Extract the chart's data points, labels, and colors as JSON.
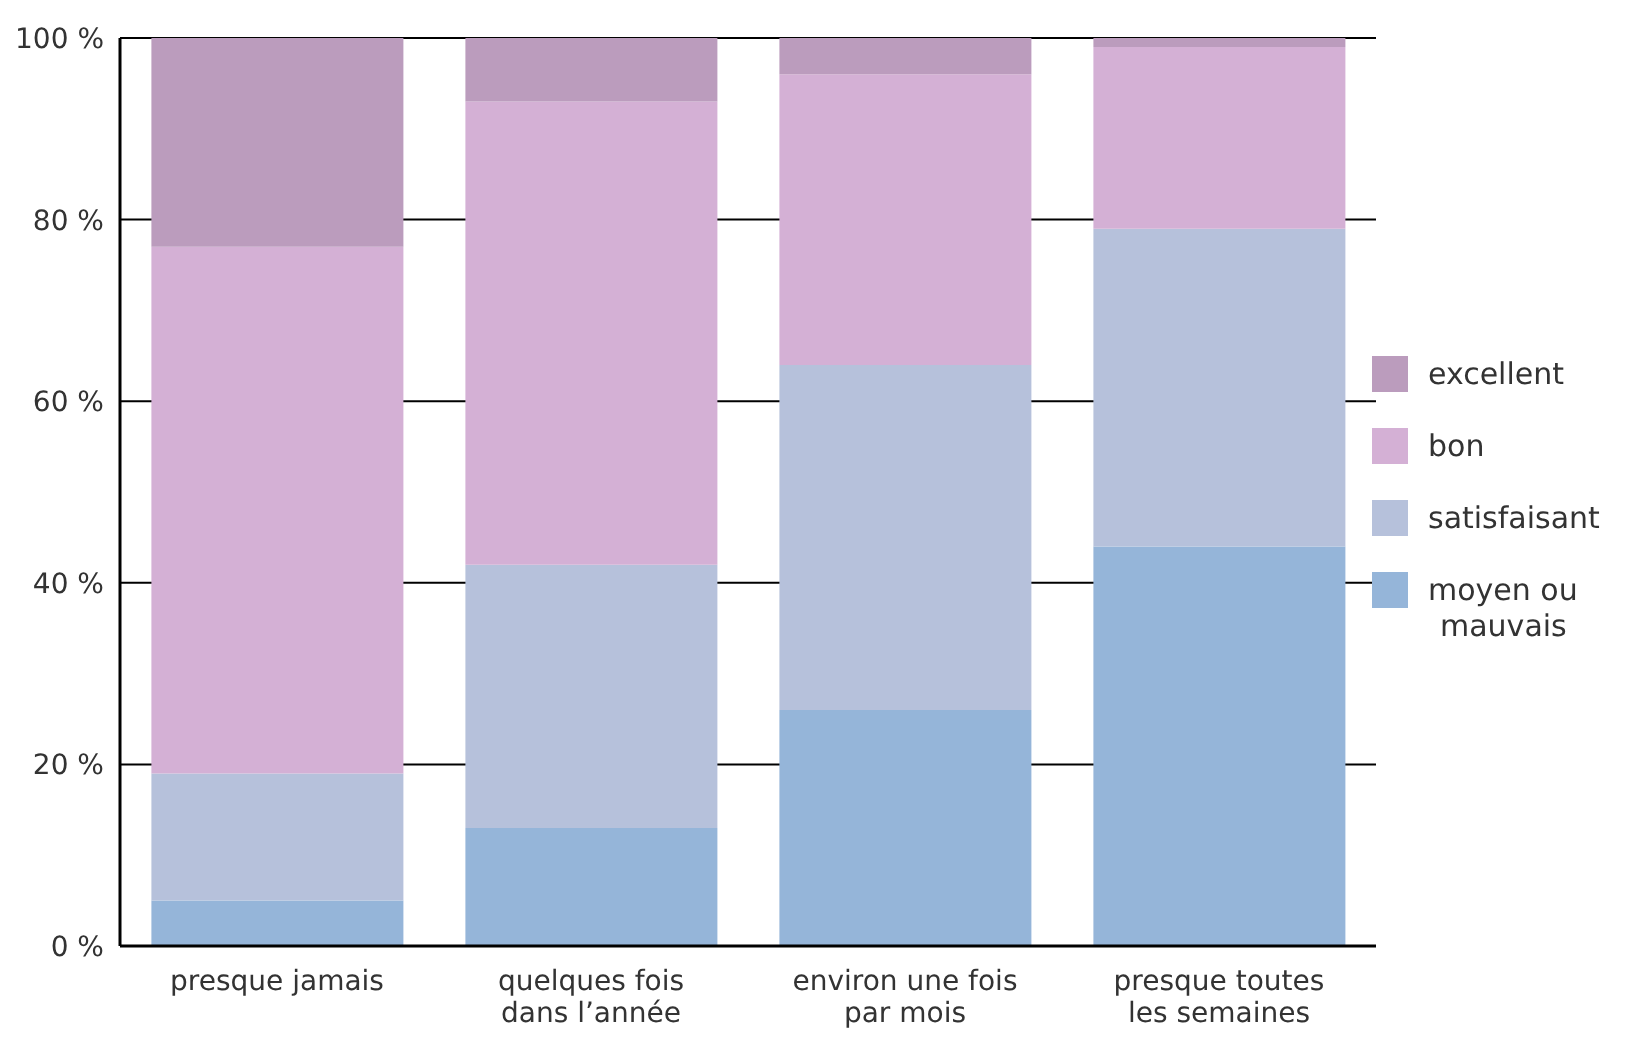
{
  "chart_data": {
    "type": "bar",
    "stacked": true,
    "categories": [
      "presque jamais",
      "quelques fois dans l’année",
      "environ une fois par mois",
      "presque toutes les semaines"
    ],
    "series": [
      {
        "name": "moyen ou mauvais",
        "color": "#95b5d9",
        "values": [
          5,
          13,
          26,
          44
        ]
      },
      {
        "name": "satisfaisant",
        "color": "#b6c1db",
        "values": [
          14,
          29,
          38,
          35
        ]
      },
      {
        "name": "bon",
        "color": "#d4b0d5",
        "values": [
          58,
          51,
          32,
          20
        ]
      },
      {
        "name": "excellent",
        "color": "#bb9cbd",
        "values": [
          23,
          7,
          4,
          1
        ]
      }
    ],
    "ylim": [
      0,
      100
    ],
    "yticks": [
      {
        "value": 0,
        "label": "0 %"
      },
      {
        "value": 20,
        "label": "20 %"
      },
      {
        "value": 40,
        "label": "40 %"
      },
      {
        "value": 60,
        "label": "60 %"
      },
      {
        "value": 80,
        "label": "80 %"
      },
      {
        "value": 100,
        "label": "100 %"
      }
    ],
    "grid": "y",
    "legend": "right"
  }
}
